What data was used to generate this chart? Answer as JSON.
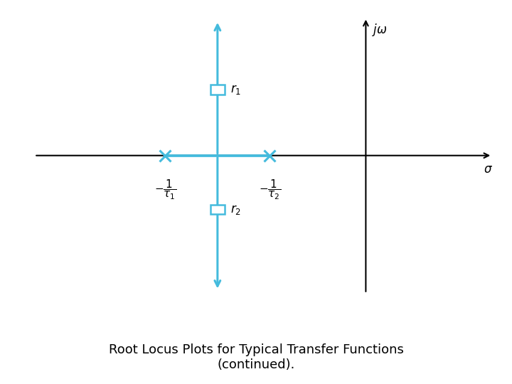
{
  "title": "Root Locus Plots for Typical Transfer Functions\n(continued).",
  "title_fontsize": 13,
  "bg_color": "#ffffff",
  "cyan_color": "#44BBDD",
  "black_color": "#000000",
  "cyan_lw": 2.2,
  "black_lw": 1.5,
  "sigma_label": "$\\sigma$",
  "jomega_label": "$j\\omega$",
  "pole_x1": -1.6,
  "pole_x2": -0.4,
  "pole_y": 0.0,
  "cyan_vertical_x": -1.0,
  "zero_y_pos": 1.1,
  "zero_y_neg": -0.9,
  "r1_label": "$r_1$",
  "r2_label": "$r_2$",
  "tau1_label": "$-\\dfrac{1}{\\tau_1}$",
  "tau2_label": "$-\\dfrac{1}{\\tau_2}$",
  "black_vertical_x": 0.7,
  "xlim": [
    -3.2,
    2.2
  ],
  "ylim": [
    -2.4,
    2.4
  ],
  "sq_size": 0.16
}
